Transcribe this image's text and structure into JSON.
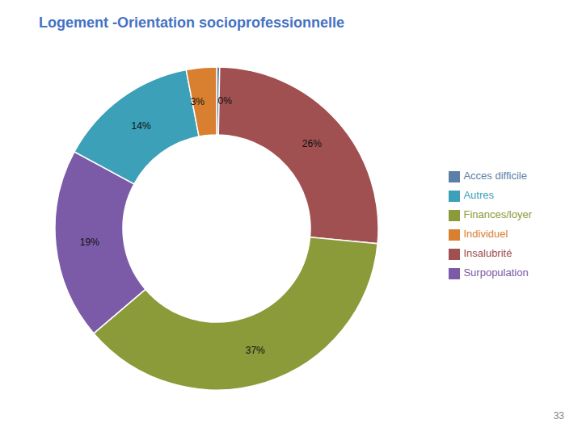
{
  "chart_data": {
    "type": "pie",
    "title": "Logement -Orientation socioprofessionnelle",
    "categories": [
      "Acces difficile",
      "Insalubrité",
      "Finances/loyer",
      "Surpopulation",
      "Autres",
      "Individuel"
    ],
    "values": [
      0.3,
      26,
      37,
      19,
      14,
      3
    ],
    "value_labels": [
      "0%",
      "26%",
      "37%",
      "19%",
      "14%",
      "3%"
    ],
    "colors": [
      "#5B7FA6",
      "#A05050",
      "#8B9B3A",
      "#7B5BA8",
      "#3BA0B8",
      "#D98030"
    ],
    "data_labels": true,
    "legend": "right",
    "annotations": [
      "33"
    ]
  }
}
